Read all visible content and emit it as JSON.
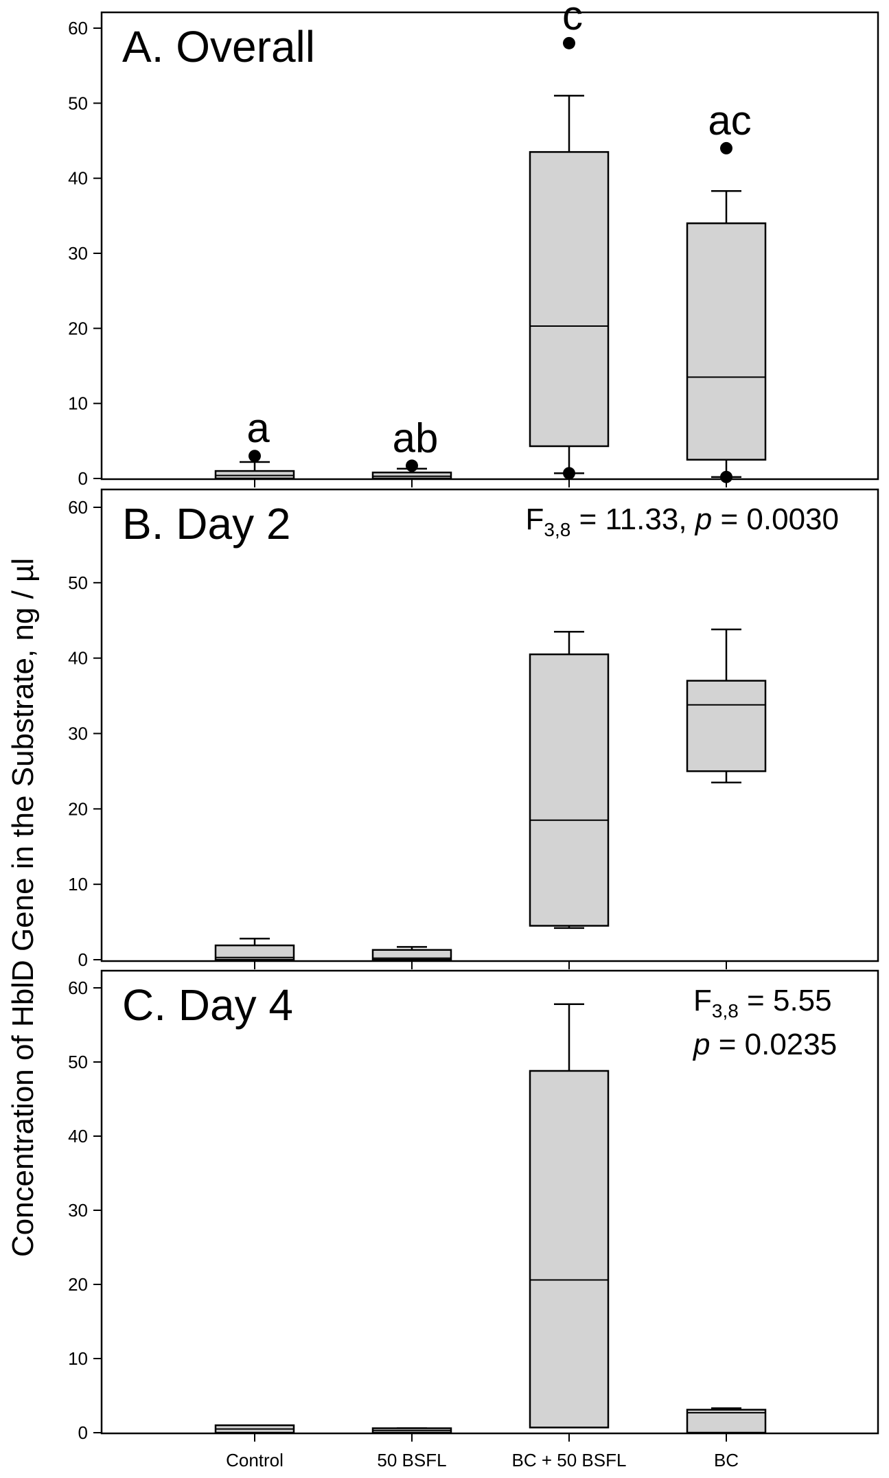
{
  "chart_data": {
    "type": "boxplot",
    "ylabel": "Concentration of HblD Gene in the Substrate, ng / µl",
    "categories": [
      "Control",
      "50 BSFL",
      "BC + 50 BSFL",
      "BC"
    ],
    "ylim": [
      0,
      60
    ],
    "yticks": [
      0,
      10,
      20,
      30,
      40,
      50,
      60
    ],
    "panels": [
      {
        "title": "A. Overall",
        "significance_letters": [
          "a",
          "ab",
          "c",
          "ac"
        ],
        "stats_line1": "",
        "stats_line2": "",
        "series": [
          {
            "category": "Control",
            "whisker_low": 0,
            "q1": 0,
            "median": 0.4,
            "q3": 1.0,
            "whisker_high": 2.2,
            "outliers": [
              3.0
            ]
          },
          {
            "category": "50 BSFL",
            "whisker_low": 0,
            "q1": 0,
            "median": 0.3,
            "q3": 0.8,
            "whisker_high": 1.3,
            "outliers": [
              1.7
            ]
          },
          {
            "category": "BC + 50 BSFL",
            "whisker_low": 0.7,
            "q1": 4.3,
            "median": 20.3,
            "q3": 43.5,
            "whisker_high": 51.0,
            "outliers": [
              0.7,
              58.0
            ]
          },
          {
            "category": "BC",
            "whisker_low": 0.2,
            "q1": 2.5,
            "median": 13.5,
            "q3": 34.0,
            "whisker_high": 38.3,
            "outliers": [
              0.2,
              44.0
            ]
          }
        ]
      },
      {
        "title": "B. Day 2",
        "significance_letters": [
          "",
          "",
          "",
          ""
        ],
        "stats_line1": "F3,8 = 11.33, p = 0.0030",
        "stats_line2": "",
        "series": [
          {
            "category": "Control",
            "whisker_low": 0,
            "q1": 0,
            "median": 0.3,
            "q3": 1.9,
            "whisker_high": 2.8,
            "outliers": []
          },
          {
            "category": "50 BSFL",
            "whisker_low": 0,
            "q1": 0,
            "median": 0.2,
            "q3": 1.3,
            "whisker_high": 1.7,
            "outliers": []
          },
          {
            "category": "BC + 50 BSFL",
            "whisker_low": 4.2,
            "q1": 4.5,
            "median": 18.5,
            "q3": 40.5,
            "whisker_high": 43.5,
            "outliers": []
          },
          {
            "category": "BC",
            "whisker_low": 23.5,
            "q1": 25.0,
            "median": 33.8,
            "q3": 37.0,
            "whisker_high": 43.8,
            "outliers": []
          }
        ]
      },
      {
        "title": "C. Day 4",
        "significance_letters": [
          "",
          "",
          "",
          ""
        ],
        "stats_line1": "F3,8 = 5.55",
        "stats_line2": "p = 0.0235",
        "series": [
          {
            "category": "Control",
            "whisker_low": 0,
            "q1": 0,
            "median": 0.5,
            "q3": 1.0,
            "whisker_high": 1.0,
            "outliers": []
          },
          {
            "category": "50 BSFL",
            "whisker_low": 0,
            "q1": 0,
            "median": 0.3,
            "q3": 0.6,
            "whisker_high": 0.6,
            "outliers": []
          },
          {
            "category": "BC + 50 BSFL",
            "whisker_low": 0.7,
            "q1": 0.7,
            "median": 20.6,
            "q3": 48.8,
            "whisker_high": 57.8,
            "outliers": []
          },
          {
            "category": "BC",
            "whisker_low": 0,
            "q1": 0,
            "median": 2.7,
            "q3": 3.1,
            "whisker_high": 3.3,
            "outliers": []
          }
        ]
      }
    ]
  }
}
